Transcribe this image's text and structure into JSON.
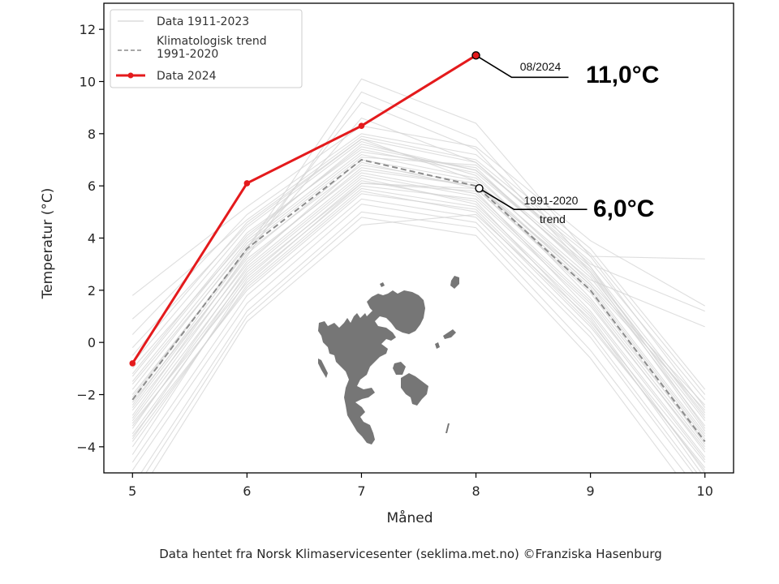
{
  "chart_data": {
    "type": "line",
    "title": "",
    "xlabel": "Måned",
    "ylabel": "Temperatur (°C)",
    "xlim": [
      4.75,
      10.25
    ],
    "ylim": [
      -5,
      13
    ],
    "x": [
      5,
      6,
      7,
      8,
      9,
      10
    ],
    "x_ticks": [
      "5",
      "6",
      "7",
      "8",
      "9",
      "10"
    ],
    "y_ticks": [
      12,
      10,
      8,
      6,
      4,
      2,
      0,
      -2,
      -4
    ],
    "y_tick_labels": [
      "12",
      "10",
      "8",
      "6",
      "4",
      "2",
      "0",
      "−2",
      "−4"
    ],
    "grid": false,
    "legend_position": "top-left",
    "series": [
      {
        "name": "Data 1911-2023",
        "style": "thin-solid",
        "color": "#d3d3d3",
        "values_approx": [
          [
            -2.0,
            3.5,
            6.8,
            6.1,
            2.2,
            -3.5
          ],
          [
            -3.0,
            2.8,
            6.4,
            5.6,
            1.5,
            -4.2
          ],
          [
            -1.2,
            4.2,
            7.4,
            6.5,
            2.8,
            -2.9
          ],
          [
            -4.0,
            2.2,
            5.9,
            5.2,
            1.0,
            -5.0
          ],
          [
            -2.6,
            3.0,
            6.9,
            5.9,
            1.9,
            -3.9
          ],
          [
            -0.5,
            4.6,
            7.8,
            6.9,
            3.1,
            -2.2
          ],
          [
            -3.5,
            2.5,
            6.2,
            5.4,
            0.8,
            -4.6
          ],
          [
            -1.8,
            3.8,
            7.2,
            6.3,
            2.5,
            -3.2
          ],
          [
            -4.6,
            1.8,
            5.5,
            4.8,
            0.4,
            -5.4
          ],
          [
            -2.3,
            3.2,
            6.6,
            6.0,
            2.1,
            -3.6
          ],
          [
            0.3,
            4.9,
            8.0,
            7.2,
            3.6,
            -1.8
          ],
          [
            -3.2,
            2.6,
            6.1,
            5.8,
            1.2,
            -4.4
          ],
          [
            -1.0,
            4.0,
            7.6,
            6.6,
            2.9,
            -2.7
          ],
          [
            -5.5,
            1.2,
            5.0,
            4.4,
            -0.3,
            -6.0
          ],
          [
            -2.8,
            3.4,
            7.0,
            6.2,
            1.7,
            -3.8
          ],
          [
            1.8,
            5.2,
            8.3,
            7.5,
            3.9,
            1.4
          ],
          [
            -3.8,
            2.1,
            5.8,
            5.0,
            0.6,
            -4.8
          ],
          [
            -1.5,
            3.9,
            7.3,
            6.7,
            2.6,
            -3.0
          ],
          [
            -2.1,
            3.6,
            10.1,
            8.4,
            3.3,
            -2.5
          ],
          [
            -4.3,
            2.4,
            6.0,
            5.5,
            1.4,
            -4.1
          ],
          [
            -0.8,
            4.4,
            7.7,
            6.4,
            2.3,
            -2.4
          ],
          [
            -3.3,
            2.9,
            6.5,
            5.7,
            1.6,
            -4.0
          ],
          [
            -2.5,
            3.3,
            9.6,
            7.8,
            2.9,
            -3.3
          ],
          [
            -6.2,
            0.8,
            4.5,
            4.9,
            0.9,
            -5.2
          ],
          [
            -1.6,
            3.7,
            7.1,
            6.8,
            3.3,
            3.2
          ],
          [
            -3.7,
            2.7,
            6.3,
            5.3,
            1.1,
            -4.5
          ],
          [
            -2.9,
            3.1,
            6.7,
            6.0,
            2.4,
            0.6
          ],
          [
            0.9,
            4.7,
            7.9,
            7.0,
            3.4,
            -2.0
          ],
          [
            -4.9,
            1.5,
            5.3,
            4.6,
            0.2,
            -5.6
          ],
          [
            -2.2,
            3.6,
            9.2,
            7.4,
            2.7,
            -3.4
          ],
          [
            -3.1,
            2.3,
            6.1,
            5.9,
            2.0,
            -3.7
          ],
          [
            -1.3,
            4.1,
            7.5,
            6.6,
            2.7,
            -2.8
          ],
          [
            -5.8,
            1.0,
            4.8,
            4.1,
            -0.6,
            -6.5
          ],
          [
            -2.4,
            3.5,
            8.6,
            6.9,
            3.0,
            1.2
          ],
          [
            -3.6,
            2.0,
            5.7,
            5.1,
            0.7,
            -4.9
          ],
          [
            -0.2,
            4.5,
            7.8,
            6.2,
            2.2,
            -2.6
          ]
        ]
      },
      {
        "name": "Klimatologisk trend 1991-2020",
        "style": "dashed",
        "color": "#8c8c8c",
        "values": [
          -2.2,
          3.6,
          7.0,
          6.0,
          2.0,
          -3.8
        ]
      },
      {
        "name": "Data 2024",
        "style": "solid-markers",
        "color": "#e41a1c",
        "values": [
          -0.8,
          6.1,
          8.3,
          11.0,
          null,
          null
        ]
      }
    ],
    "legend": [
      "Data 1911-2023",
      "Klimatologisk trend",
      "1991-2020",
      "Data 2024"
    ],
    "annotations": [
      {
        "x": 8,
        "y": 11.0,
        "label": "08/2024",
        "value": "11,0°C"
      },
      {
        "x": 8,
        "y": 6.0,
        "label_top": "1991-2020",
        "label_bottom": "trend",
        "value": "6,0°C"
      }
    ],
    "inset_map": "Svalbard",
    "footer": "Data hentet fra Norsk Klimaservicesenter (seklima.met.no) ©Franziska Hasenburg"
  }
}
